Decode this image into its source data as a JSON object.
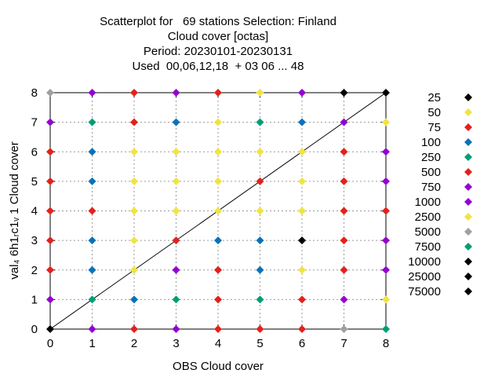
{
  "chart_data": {
    "type": "scatter",
    "title_lines": [
      "Scatterplot for   69 stations Selection: Finland",
      "Cloud cover [octas]",
      "Period: 20230101-20230131",
      "Used  00,06,12,18  + 03 06 ... 48"
    ],
    "xlabel": "OBS Cloud cover",
    "ylabel": "val₄ 6h1ᵣc1ᵥ 1 Cloud cover",
    "xlim": [
      0,
      8
    ],
    "ylim": [
      0,
      8
    ],
    "x_ticks": [
      "0",
      "1",
      "2",
      "3",
      "4",
      "5",
      "6",
      "7",
      "8"
    ],
    "y_ticks": [
      "0",
      "1",
      "2",
      "3",
      "4",
      "5",
      "6",
      "7",
      "8"
    ],
    "grid": true,
    "diagonal_line": true,
    "legend_position": "right",
    "legend": [
      {
        "label": "25",
        "color": "#000000"
      },
      {
        "label": "50",
        "color": "#f0e442"
      },
      {
        "label": "75",
        "color": "#e3211c"
      },
      {
        "label": "100",
        "color": "#0a72b8"
      },
      {
        "label": "250",
        "color": "#009e73"
      },
      {
        "label": "500",
        "color": "#e3211c"
      },
      {
        "label": "750",
        "color": "#9400d3"
      },
      {
        "label": "1000",
        "color": "#9400d3"
      },
      {
        "label": "2500",
        "color": "#f0e442"
      },
      {
        "label": "5000",
        "color": "#a0a0a0"
      },
      {
        "label": "7500",
        "color": "#009e73"
      },
      {
        "label": "10000",
        "color": "#000000"
      },
      {
        "label": "25000",
        "color": "#000000"
      },
      {
        "label": "75000",
        "color": "#000000"
      }
    ],
    "points": [
      {
        "x": 0,
        "y": 8,
        "color": "#a0a0a0"
      },
      {
        "x": 1,
        "y": 8,
        "color": "#9400d3"
      },
      {
        "x": 2,
        "y": 8,
        "color": "#e3211c"
      },
      {
        "x": 3,
        "y": 8,
        "color": "#9400d3"
      },
      {
        "x": 4,
        "y": 8,
        "color": "#e3211c"
      },
      {
        "x": 5,
        "y": 8,
        "color": "#f0e442"
      },
      {
        "x": 6,
        "y": 8,
        "color": "#9400d3"
      },
      {
        "x": 7,
        "y": 8,
        "color": "#000000"
      },
      {
        "x": 8,
        "y": 8,
        "color": "#000000"
      },
      {
        "x": 0,
        "y": 7,
        "color": "#9400d3"
      },
      {
        "x": 1,
        "y": 7,
        "color": "#009e73"
      },
      {
        "x": 2,
        "y": 7,
        "color": "#e3211c"
      },
      {
        "x": 3,
        "y": 7,
        "color": "#0a72b8"
      },
      {
        "x": 4,
        "y": 7,
        "color": "#f0e442"
      },
      {
        "x": 5,
        "y": 7,
        "color": "#009e73"
      },
      {
        "x": 6,
        "y": 7,
        "color": "#0a72b8"
      },
      {
        "x": 7,
        "y": 7,
        "color": "#9400d3"
      },
      {
        "x": 8,
        "y": 7,
        "color": "#f0e442"
      },
      {
        "x": 0,
        "y": 6,
        "color": "#e3211c"
      },
      {
        "x": 1,
        "y": 6,
        "color": "#0a72b8"
      },
      {
        "x": 2,
        "y": 6,
        "color": "#f0e442"
      },
      {
        "x": 3,
        "y": 6,
        "color": "#f0e442"
      },
      {
        "x": 4,
        "y": 6,
        "color": "#f0e442"
      },
      {
        "x": 5,
        "y": 6,
        "color": "#f0e442"
      },
      {
        "x": 6,
        "y": 6,
        "color": "#f0e442"
      },
      {
        "x": 7,
        "y": 6,
        "color": "#e3211c"
      },
      {
        "x": 8,
        "y": 6,
        "color": "#9400d3"
      },
      {
        "x": 0,
        "y": 5,
        "color": "#e3211c"
      },
      {
        "x": 1,
        "y": 5,
        "color": "#0a72b8"
      },
      {
        "x": 2,
        "y": 5,
        "color": "#f0e442"
      },
      {
        "x": 3,
        "y": 5,
        "color": "#f0e442"
      },
      {
        "x": 4,
        "y": 5,
        "color": "#f0e442"
      },
      {
        "x": 5,
        "y": 5,
        "color": "#e3211c"
      },
      {
        "x": 6,
        "y": 5,
        "color": "#f0e442"
      },
      {
        "x": 7,
        "y": 5,
        "color": "#e3211c"
      },
      {
        "x": 8,
        "y": 5,
        "color": "#9400d3"
      },
      {
        "x": 0,
        "y": 4,
        "color": "#e3211c"
      },
      {
        "x": 1,
        "y": 4,
        "color": "#e3211c"
      },
      {
        "x": 2,
        "y": 4,
        "color": "#f0e442"
      },
      {
        "x": 3,
        "y": 4,
        "color": "#f0e442"
      },
      {
        "x": 4,
        "y": 4,
        "color": "#f0e442"
      },
      {
        "x": 5,
        "y": 4,
        "color": "#f0e442"
      },
      {
        "x": 6,
        "y": 4,
        "color": "#f0e442"
      },
      {
        "x": 7,
        "y": 4,
        "color": "#e3211c"
      },
      {
        "x": 8,
        "y": 4,
        "color": "#e3211c"
      },
      {
        "x": 0,
        "y": 3,
        "color": "#e3211c"
      },
      {
        "x": 1,
        "y": 3,
        "color": "#0a72b8"
      },
      {
        "x": 2,
        "y": 3,
        "color": "#f0e442"
      },
      {
        "x": 3,
        "y": 3,
        "color": "#e3211c"
      },
      {
        "x": 4,
        "y": 3,
        "color": "#0a72b8"
      },
      {
        "x": 5,
        "y": 3,
        "color": "#0a72b8"
      },
      {
        "x": 6,
        "y": 3,
        "color": "#000000"
      },
      {
        "x": 7,
        "y": 3,
        "color": "#e3211c"
      },
      {
        "x": 8,
        "y": 3,
        "color": "#9400d3"
      },
      {
        "x": 0,
        "y": 2,
        "color": "#e3211c"
      },
      {
        "x": 1,
        "y": 2,
        "color": "#0a72b8"
      },
      {
        "x": 2,
        "y": 2,
        "color": "#f0e442"
      },
      {
        "x": 3,
        "y": 2,
        "color": "#9400d3"
      },
      {
        "x": 4,
        "y": 2,
        "color": "#e3211c"
      },
      {
        "x": 5,
        "y": 2,
        "color": "#0a72b8"
      },
      {
        "x": 6,
        "y": 2,
        "color": "#f0e442"
      },
      {
        "x": 7,
        "y": 2,
        "color": "#e3211c"
      },
      {
        "x": 8,
        "y": 2,
        "color": "#9400d3"
      },
      {
        "x": 0,
        "y": 1,
        "color": "#9400d3"
      },
      {
        "x": 1,
        "y": 1,
        "color": "#009e73"
      },
      {
        "x": 2,
        "y": 1,
        "color": "#0a72b8"
      },
      {
        "x": 3,
        "y": 1,
        "color": "#009e73"
      },
      {
        "x": 4,
        "y": 1,
        "color": "#e3211c"
      },
      {
        "x": 5,
        "y": 1,
        "color": "#009e73"
      },
      {
        "x": 6,
        "y": 1,
        "color": "#e3211c"
      },
      {
        "x": 7,
        "y": 1,
        "color": "#9400d3"
      },
      {
        "x": 8,
        "y": 1,
        "color": "#f0e442"
      },
      {
        "x": 0,
        "y": 0,
        "color": "#000000"
      },
      {
        "x": 1,
        "y": 0,
        "color": "#9400d3"
      },
      {
        "x": 2,
        "y": 0,
        "color": "#e3211c"
      },
      {
        "x": 3,
        "y": 0,
        "color": "#9400d3"
      },
      {
        "x": 4,
        "y": 0,
        "color": "#e3211c"
      },
      {
        "x": 5,
        "y": 0,
        "color": "#e3211c"
      },
      {
        "x": 6,
        "y": 0,
        "color": "#e3211c"
      },
      {
        "x": 7,
        "y": 0,
        "color": "#a0a0a0"
      },
      {
        "x": 8,
        "y": 0,
        "color": "#009e73"
      }
    ]
  }
}
